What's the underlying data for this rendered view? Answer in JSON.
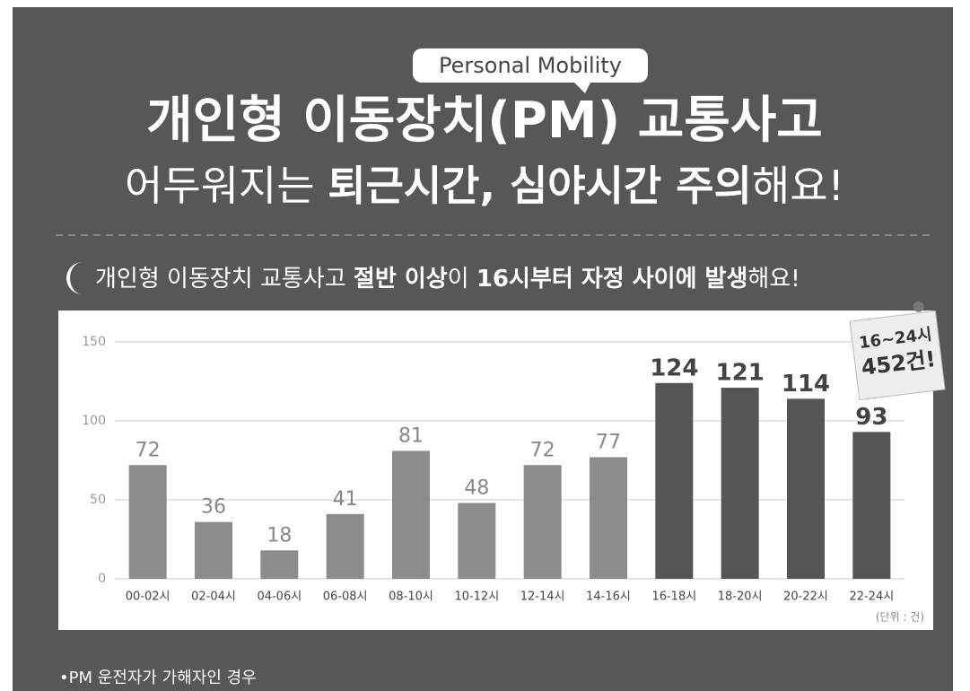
{
  "badge": "Personal Mobility",
  "title": "개인형 이동장치(PM) 교통사고",
  "subtitle": [
    {
      "text": "어두워지는 ",
      "bold": false
    },
    {
      "text": "퇴근시간, 심야시간 주의",
      "bold": true
    },
    {
      "text": "해요!",
      "bold": false
    }
  ],
  "caption": [
    {
      "text": "개인형 이동장치 교통사고 ",
      "bold": false
    },
    {
      "text": "절반 이상",
      "bold": true
    },
    {
      "text": "이 ",
      "bold": false
    },
    {
      "text": "16시부터 자정 사이에 발생",
      "bold": true
    },
    {
      "text": "해요!",
      "bold": false
    }
  ],
  "chart_data": {
    "type": "bar",
    "categories": [
      "00-02시",
      "02-04시",
      "04-06시",
      "06-08시",
      "08-10시",
      "10-12시",
      "12-14시",
      "14-16시",
      "16-18시",
      "18-20시",
      "20-22시",
      "22-24시"
    ],
    "values": [
      72,
      36,
      18,
      41,
      81,
      48,
      72,
      77,
      124,
      121,
      114,
      93
    ],
    "color": "#8c8c8c",
    "highlight_color": "#555555",
    "highlight": [
      false,
      false,
      false,
      false,
      false,
      false,
      false,
      false,
      true,
      true,
      true,
      true
    ],
    "ylim": [
      0,
      150
    ],
    "yticks": [
      0,
      50,
      100,
      150
    ],
    "grid": true,
    "unit_note": "(단위 : 건)",
    "annotation": [
      "16~24시",
      "452건!"
    ]
  },
  "footnote": "•PM 운전자가 가해자인 경우"
}
